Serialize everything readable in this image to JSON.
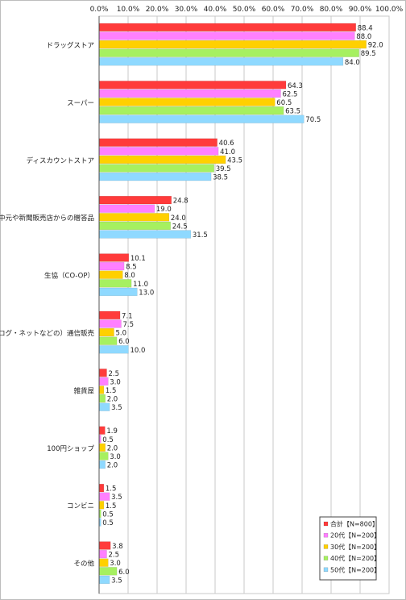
{
  "chart_data": {
    "type": "bar",
    "orientation": "horizontal",
    "title": "",
    "xlabel": "",
    "ylabel": "",
    "xlim": [
      0,
      100
    ],
    "x_tick_labels": [
      "0.0%",
      "10.0%",
      "20.0%",
      "30.0%",
      "40.0%",
      "50.0%",
      "60.0%",
      "70.0%",
      "80.0%",
      "90.0%",
      "100.0%"
    ],
    "x_tick_values": [
      0,
      10,
      20,
      30,
      40,
      50,
      60,
      70,
      80,
      90,
      100
    ],
    "grid": true,
    "legend_position": "bottom-right",
    "categories": [
      "ドラッグストア",
      "スーパー",
      "ディスカウントストア",
      "お中元や新聞販売店からの贈答品",
      "生協（CO-OP）",
      "（カタログ・ネットなどの）通信販売",
      "雑貨屋",
      "100円ショップ",
      "コンビニ",
      "その他"
    ],
    "series": [
      {
        "name": "合計【N=800】",
        "color": "#ff3b3b",
        "values": [
          88.4,
          64.3,
          40.6,
          24.8,
          10.1,
          7.1,
          2.5,
          1.9,
          1.5,
          3.8
        ],
        "labels": [
          "88.4",
          "64.3",
          "40.6",
          "24.8",
          "10.1",
          "7.1",
          "2.5",
          "1.9",
          "1.5",
          "3.8"
        ]
      },
      {
        "name": "20代【N=200】",
        "color": "#ff80ff",
        "values": [
          88.0,
          62.5,
          41.0,
          19.0,
          8.5,
          7.5,
          3.0,
          0.5,
          3.5,
          2.5
        ],
        "labels": [
          "88.0",
          "62.5",
          "41.0",
          "19.0",
          "8.5",
          "7.5",
          "3.0",
          "0.5",
          "3.5",
          "2.5"
        ]
      },
      {
        "name": "30代【N=200】",
        "color": "#ffd000",
        "values": [
          92.0,
          60.5,
          43.5,
          24.0,
          8.0,
          5.0,
          1.5,
          2.0,
          1.5,
          3.0
        ],
        "labels": [
          "92.0",
          "60.5",
          "43.5",
          "24.0",
          "8.0",
          "5.0",
          "1.5",
          "2.0",
          "1.5",
          "3.0"
        ]
      },
      {
        "name": "40代【N=200】",
        "color": "#a6f060",
        "values": [
          89.5,
          63.5,
          39.5,
          24.5,
          11.0,
          6.0,
          2.0,
          3.0,
          0.5,
          6.0
        ],
        "labels": [
          "89.5",
          "63.5",
          "39.5",
          "24.5",
          "11.0",
          "6.0",
          "2.0",
          "3.0",
          "0.5",
          "6.0"
        ]
      },
      {
        "name": "50代【N=200】",
        "color": "#8fd9ff",
        "values": [
          84.0,
          70.5,
          38.5,
          31.5,
          13.0,
          10.0,
          3.5,
          2.0,
          0.5,
          3.5
        ],
        "labels": [
          "84.0",
          "70.5",
          "38.5",
          "31.5",
          "13.0",
          "10.0",
          "3.5",
          "2.0",
          "0.5",
          "3.5"
        ]
      }
    ]
  }
}
